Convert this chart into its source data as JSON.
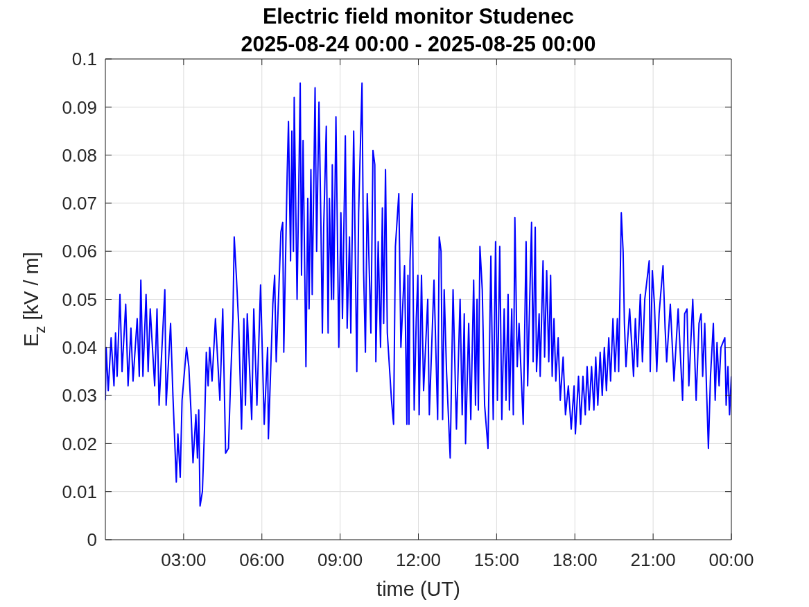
{
  "chart_data": {
    "type": "line",
    "title": "Electric field monitor Studenec",
    "subtitle": "2025-08-24 00:00 - 2025-08-25 00:00",
    "xlabel": "time (UT)",
    "ylabel": "E$_{z}$ [kV / m]",
    "x": [
      0,
      0.03,
      0.11,
      0.22,
      0.33,
      0.39,
      0.45,
      0.56,
      0.64,
      0.78,
      0.87,
      0.98,
      1.06,
      1.22,
      1.3,
      1.36,
      1.44,
      1.56,
      1.64,
      1.72,
      1.89,
      1.98,
      2.06,
      2.28,
      2.33,
      2.5,
      2.59,
      2.72,
      2.78,
      2.87,
      2.94,
      3.11,
      3.2,
      3.28,
      3.36,
      3.47,
      3.53,
      3.58,
      3.63,
      3.72,
      3.8,
      3.87,
      3.94,
      4,
      4.09,
      4.22,
      4.39,
      4.5,
      4.61,
      4.72,
      4.8,
      4.89,
      4.94,
      5.03,
      5.11,
      5.22,
      5.31,
      5.37,
      5.44,
      5.61,
      5.69,
      5.81,
      5.95,
      6.09,
      6.22,
      6.25,
      6.42,
      6.49,
      6.55,
      6.73,
      6.8,
      6.84,
      6.97,
      7.02,
      7.1,
      7.15,
      7.21,
      7.24,
      7.35,
      7.43,
      7.47,
      7.52,
      7.58,
      7.69,
      7.76,
      7.81,
      7.88,
      7.93,
      8.04,
      8.1,
      8.19,
      8.26,
      8.32,
      8.37,
      8.47,
      8.54,
      8.59,
      8.67,
      8.7,
      8.75,
      8.84,
      8.95,
      9.03,
      9.09,
      9.2,
      9.27,
      9.36,
      9.41,
      9.52,
      9.64,
      9.71,
      9.84,
      9.9,
      9.97,
      10.04,
      10.18,
      10.26,
      10.33,
      10.37,
      10.46,
      10.55,
      10.62,
      10.67,
      10.74,
      10.81,
      10.97,
      11.05,
      11.12,
      11.25,
      11.33,
      11.47,
      11.56,
      11.6,
      11.64,
      11.68,
      11.77,
      11.84,
      11.92,
      11.98,
      12.03,
      12.12,
      12.2,
      12.36,
      12.42,
      12.6,
      12.74,
      12.8,
      12.87,
      12.93,
      12.99,
      13.08,
      13.22,
      13.33,
      13.46,
      13.6,
      13.68,
      13.76,
      13.81,
      13.93,
      14.01,
      14.12,
      14.19,
      14.25,
      14.3,
      14.36,
      14.45,
      14.54,
      14.67,
      14.78,
      14.87,
      14.96,
      15.03,
      15.12,
      15.2,
      15.29,
      15.36,
      15.44,
      15.49,
      15.58,
      15.64,
      15.7,
      15.79,
      15.86,
      16.02,
      16.13,
      16.19,
      16.34,
      16.4,
      16.48,
      16.53,
      16.63,
      16.67,
      16.78,
      16.84,
      16.92,
      17,
      17.07,
      17.13,
      17.2,
      17.27,
      17.36,
      17.44,
      17.55,
      17.64,
      17.75,
      17.86,
      17.97,
      18.02,
      18.14,
      18.22,
      18.31,
      18.4,
      18.47,
      18.55,
      18.64,
      18.73,
      18.8,
      18.88,
      18.97,
      19.05,
      19.13,
      19.21,
      19.3,
      19.37,
      19.46,
      19.54,
      19.63,
      19.68,
      19.78,
      19.85,
      19.9,
      19.96,
      20.1,
      20.25,
      20.32,
      20.4,
      20.51,
      20.59,
      20.68,
      20.85,
      20.89,
      20.97,
      21.05,
      21.14,
      21.23,
      21.38,
      21.46,
      21.52,
      21.66,
      21.8,
      21.96,
      22.13,
      22.21,
      22.3,
      22.37,
      22.52,
      22.65,
      22.76,
      22.84,
      22.9,
      22.98,
      23.05,
      23.12,
      23.2,
      23.31,
      23.38,
      23.45,
      23.53,
      23.6,
      23.75,
      23.8,
      23.87,
      23.93,
      24
    ],
    "values": [
      0.029,
      0.04,
      0.031,
      0.042,
      0.032,
      0.043,
      0.034,
      0.051,
      0.035,
      0.049,
      0.032,
      0.044,
      0.033,
      0.046,
      0.034,
      0.054,
      0.034,
      0.051,
      0.035,
      0.048,
      0.032,
      0.048,
      0.028,
      0.052,
      0.028,
      0.045,
      0.03,
      0.012,
      0.022,
      0.013,
      0.029,
      0.04,
      0.036,
      0.027,
      0.016,
      0.026,
      0.017,
      0.027,
      0.007,
      0.01,
      0.023,
      0.039,
      0.032,
      0.04,
      0.033,
      0.046,
      0.029,
      0.048,
      0.018,
      0.019,
      0.033,
      0.046,
      0.063,
      0.054,
      0.045,
      0.023,
      0.046,
      0.028,
      0.047,
      0.025,
      0.048,
      0.028,
      0.053,
      0.024,
      0.04,
      0.021,
      0.049,
      0.055,
      0.037,
      0.064,
      0.066,
      0.039,
      0.076,
      0.087,
      0.058,
      0.085,
      0.06,
      0.092,
      0.05,
      0.079,
      0.095,
      0.055,
      0.083,
      0.036,
      0.071,
      0.048,
      0.077,
      0.051,
      0.094,
      0.06,
      0.091,
      0.067,
      0.043,
      0.065,
      0.086,
      0.043,
      0.071,
      0.05,
      0.078,
      0.05,
      0.088,
      0.04,
      0.068,
      0.046,
      0.084,
      0.044,
      0.063,
      0.043,
      0.085,
      0.035,
      0.068,
      0.095,
      0.056,
      0.039,
      0.072,
      0.043,
      0.081,
      0.078,
      0.037,
      0.062,
      0.04,
      0.069,
      0.045,
      0.077,
      0.043,
      0.029,
      0.024,
      0.061,
      0.072,
      0.04,
      0.057,
      0.024,
      0.055,
      0.024,
      0.058,
      0.072,
      0.027,
      0.046,
      0.055,
      0.026,
      0.055,
      0.031,
      0.05,
      0.026,
      0.054,
      0.025,
      0.063,
      0.06,
      0.025,
      0.052,
      0.035,
      0.017,
      0.052,
      0.023,
      0.05,
      0.026,
      0.047,
      0.02,
      0.045,
      0.025,
      0.054,
      0.028,
      0.05,
      0.027,
      0.061,
      0.052,
      0.028,
      0.019,
      0.059,
      0.025,
      0.062,
      0.029,
      0.061,
      0.025,
      0.048,
      0.029,
      0.051,
      0.027,
      0.048,
      0.026,
      0.067,
      0.036,
      0.045,
      0.024,
      0.062,
      0.032,
      0.066,
      0.037,
      0.065,
      0.035,
      0.047,
      0.034,
      0.058,
      0.038,
      0.056,
      0.037,
      0.055,
      0.034,
      0.046,
      0.033,
      0.042,
      0.029,
      0.038,
      0.026,
      0.032,
      0.023,
      0.032,
      0.022,
      0.034,
      0.024,
      0.034,
      0.026,
      0.036,
      0.027,
      0.036,
      0.027,
      0.038,
      0.028,
      0.039,
      0.03,
      0.04,
      0.031,
      0.042,
      0.033,
      0.046,
      0.035,
      0.046,
      0.035,
      0.068,
      0.06,
      0.045,
      0.036,
      0.048,
      0.034,
      0.046,
      0.036,
      0.051,
      0.037,
      0.05,
      0.058,
      0.035,
      0.056,
      0.049,
      0.035,
      0.047,
      0.057,
      0.044,
      0.037,
      0.049,
      0.033,
      0.048,
      0.029,
      0.047,
      0.048,
      0.032,
      0.05,
      0.029,
      0.045,
      0.047,
      0.034,
      0.045,
      0.031,
      0.019,
      0.034,
      0.045,
      0.029,
      0.041,
      0.032,
      0.04,
      0.042,
      0.028,
      0.036,
      0.026,
      0.034
    ],
    "color": "#0000ff",
    "marker": "none",
    "line_style": "solid",
    "xlim": [
      0,
      24
    ],
    "xticks": [
      {
        "value": 3,
        "label": "03:00"
      },
      {
        "value": 6,
        "label": "06:00"
      },
      {
        "value": 9,
        "label": "09:00"
      },
      {
        "value": 12,
        "label": "12:00"
      },
      {
        "value": 15,
        "label": "15:00"
      },
      {
        "value": 18,
        "label": "18:00"
      },
      {
        "value": 21,
        "label": "21:00"
      },
      {
        "value": 24,
        "label": "00:00"
      }
    ],
    "ylim": [
      0,
      0.1
    ],
    "yticks": [
      0,
      0.01,
      0.02,
      0.03,
      0.04,
      0.05,
      0.06,
      0.07,
      0.08,
      0.09,
      0.1
    ],
    "grid": true
  }
}
